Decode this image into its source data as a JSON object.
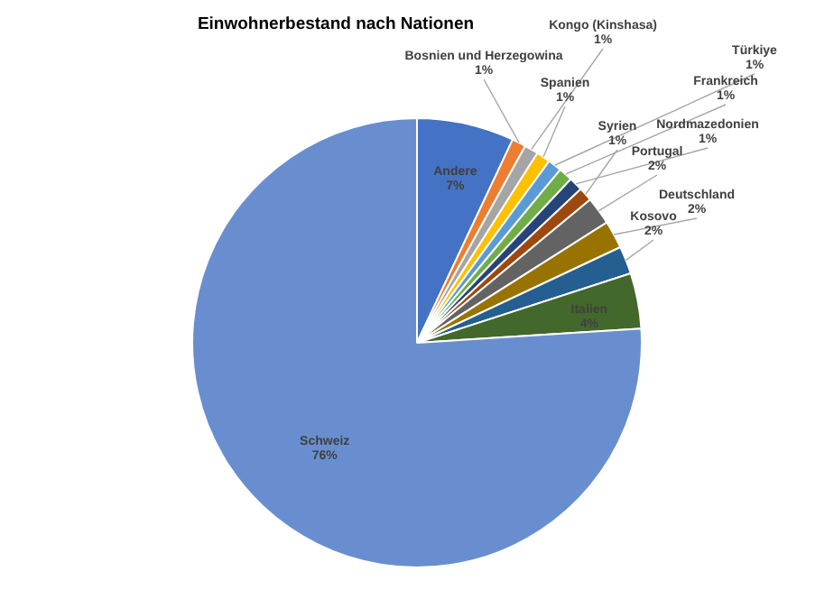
{
  "chart_data": {
    "type": "pie",
    "title": "Einwohnerbestand nach Nationen",
    "categories": [
      "Andere",
      "Bosnien und Herzegowina",
      "Kongo (Kinshasa)",
      "Spanien",
      "Türkiye",
      "Frankreich",
      "Nordmazedonien",
      "Syrien",
      "Portugal",
      "Deutschland",
      "Kosovo",
      "Italien",
      "Schweiz"
    ],
    "values": [
      7,
      1,
      1,
      1,
      1,
      1,
      1,
      1,
      2,
      2,
      2,
      4,
      76
    ],
    "value_labels": [
      "7%",
      "1%",
      "1%",
      "1%",
      "1%",
      "1%",
      "1%",
      "1%",
      "2%",
      "2%",
      "2%",
      "4%",
      "76%"
    ],
    "colors": [
      "#4472c4",
      "#ed7d31",
      "#a5a5a5",
      "#ffc000",
      "#5b9bd5",
      "#70ad47",
      "#264478",
      "#9e480e",
      "#636363",
      "#997300",
      "#255e91",
      "#43682b",
      "#698ed0"
    ],
    "legend": false
  }
}
